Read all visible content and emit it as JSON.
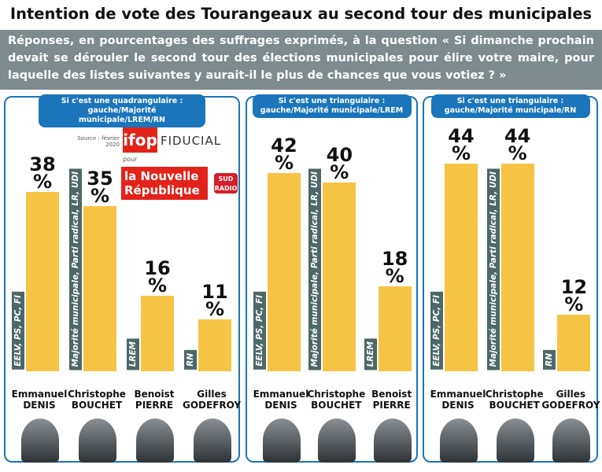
{
  "title": "Intention de vote des Tourangeaux au second tour des municipales",
  "subtitle": "Réponses, en pourcentages des suffrages exprimés, à la question « Si dimanche prochain devait se dérouler le second tour des élections municipales pour élire votre maire, pour laquelle des listes suivantes y aurait-il le plus de chances que vous votiez ? »",
  "logos": {
    "source": "Source : février 2020",
    "ifop": "ifop",
    "fiducial": "FIDUCIAL",
    "pour": "pour",
    "newspaper": "la Nouvelle République",
    "radio": "SUD RADIO"
  },
  "chart_data": [
    {
      "type": "bar",
      "title": "Si c'est une quadrangulaire : gauche/Majorité municipale/LREM/RN",
      "color": "#f6c445",
      "categories": [
        "Emmanuel DENIS",
        "Christophe BOUCHET",
        "Benoist PIERRE",
        "Gilles GODEFROY"
      ],
      "parties": [
        "EELV, PS, PC, FI",
        "Majorité municipale, Parti radical, LR, UDI",
        "LREM",
        "RN"
      ],
      "values": [
        38,
        35,
        16,
        11
      ],
      "value_labels": [
        "38 %",
        "35 %",
        "16 %",
        "11 %"
      ]
    },
    {
      "type": "bar",
      "title": "Si c'est une triangulaire : gauche/Majorité municipale/LREM",
      "color": "#f6c445",
      "categories": [
        "Emmanuel DENIS",
        "Christophe BOUCHET",
        "Benoist PIERRE"
      ],
      "parties": [
        "EELV, PS, PC, FI",
        "Majorité municipale, Parti radical, LR, UDI",
        "LREM"
      ],
      "values": [
        42,
        40,
        18
      ],
      "value_labels": [
        "42 %",
        "40 %",
        "18 %"
      ]
    },
    {
      "type": "bar",
      "title": "Si c'est une triangulaire : gauche/Majorité municipale/RN",
      "color": "#f6c445",
      "categories": [
        "Emmanuel DENIS",
        "Christophe BOUCHET",
        "Gilles GODEFROY"
      ],
      "parties": [
        "EELV, PS, PC, FI",
        "Majorité municipale, Parti radical, LR, UDI",
        "RN"
      ],
      "values": [
        44,
        44,
        12
      ],
      "value_labels": [
        "44 %",
        "44 %",
        "12 %"
      ]
    }
  ]
}
